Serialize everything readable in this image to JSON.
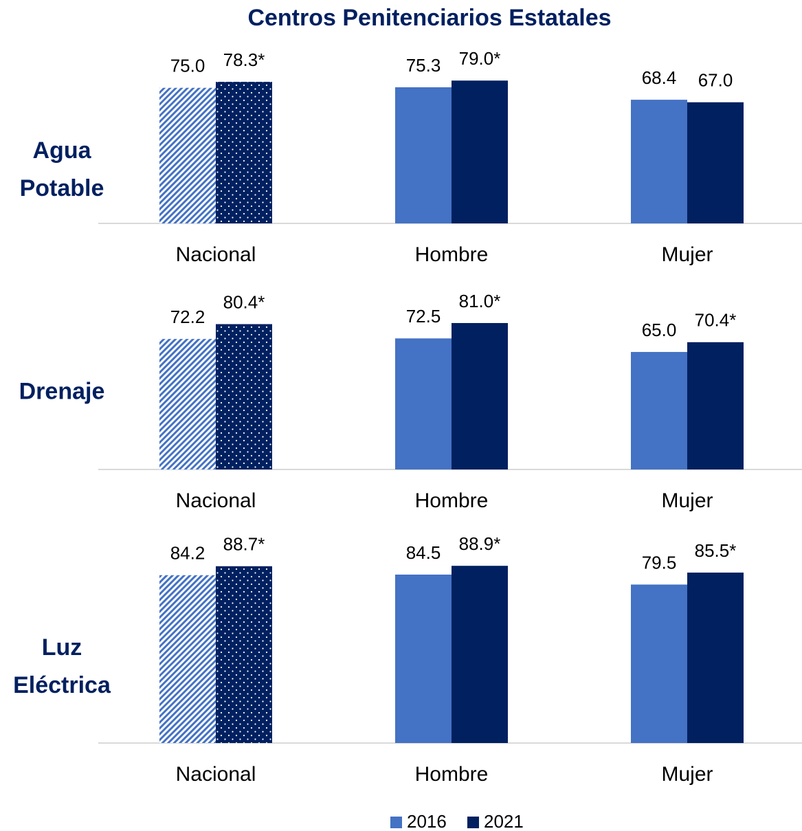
{
  "chart_data": {
    "type": "bar",
    "title": "Centros Penitenciarios Estatales",
    "categories": [
      "Nacional",
      "Hombre",
      "Mujer"
    ],
    "legend": [
      {
        "name": "2016",
        "color": "#4472c4"
      },
      {
        "name": "2021",
        "color": "#002060"
      }
    ],
    "ylim": [
      0,
      100
    ],
    "panels": [
      {
        "label": "Agua Potable",
        "series": [
          {
            "values": [
              75.0,
              75.3,
              68.4
            ],
            "value_labels": [
              "75.0",
              "75.3",
              "68.4"
            ]
          },
          {
            "values": [
              78.3,
              79.0,
              67.0
            ],
            "value_labels": [
              "78.3*",
              "79.0*",
              "67.0"
            ]
          }
        ]
      },
      {
        "label": "Drenaje",
        "series": [
          {
            "values": [
              72.2,
              72.5,
              65.0
            ],
            "value_labels": [
              "72.2",
              "72.5",
              "65.0"
            ]
          },
          {
            "values": [
              80.4,
              81.0,
              70.4
            ],
            "value_labels": [
              "80.4*",
              "81.0*",
              "70.4*"
            ]
          }
        ]
      },
      {
        "label": "Luz Eléctrica",
        "series": [
          {
            "values": [
              84.2,
              84.5,
              79.5
            ],
            "value_labels": [
              "84.2",
              "84.5",
              "79.5"
            ]
          },
          {
            "values": [
              88.7,
              88.9,
              85.5
            ],
            "value_labels": [
              "88.7*",
              "88.9*",
              "85.5*"
            ]
          }
        ]
      }
    ]
  }
}
